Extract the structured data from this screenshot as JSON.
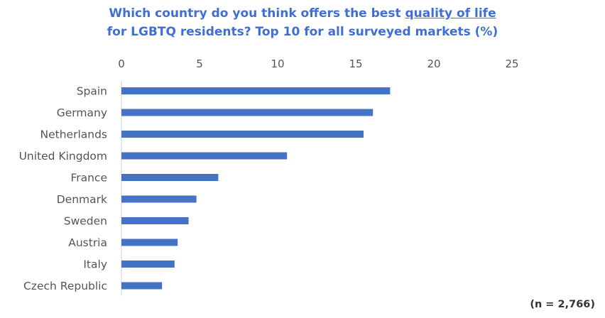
{
  "chart_data": {
    "type": "bar",
    "orientation": "horizontal",
    "title_line1_prefix": "Which country do you think offers the best ",
    "title_line1_underlined": "quality of life",
    "title_line2": "for LGBTQ residents? Top 10 for all surveyed markets (%)",
    "categories": [
      "Spain",
      "Germany",
      "Netherlands",
      "United Kingdom",
      "France",
      "Denmark",
      "Sweden",
      "Austria",
      "Italy",
      "Czech Republic"
    ],
    "values": [
      17.2,
      16.1,
      15.5,
      10.6,
      6.2,
      4.8,
      4.3,
      3.6,
      3.4,
      2.6
    ],
    "xlim": [
      0,
      25
    ],
    "xticks": [
      "0",
      "5",
      "10",
      "15",
      "20",
      "25"
    ],
    "xaxis_position": "top",
    "grid": false,
    "bar_color": "#4472c4",
    "footnote": "(n = 2,766)"
  }
}
